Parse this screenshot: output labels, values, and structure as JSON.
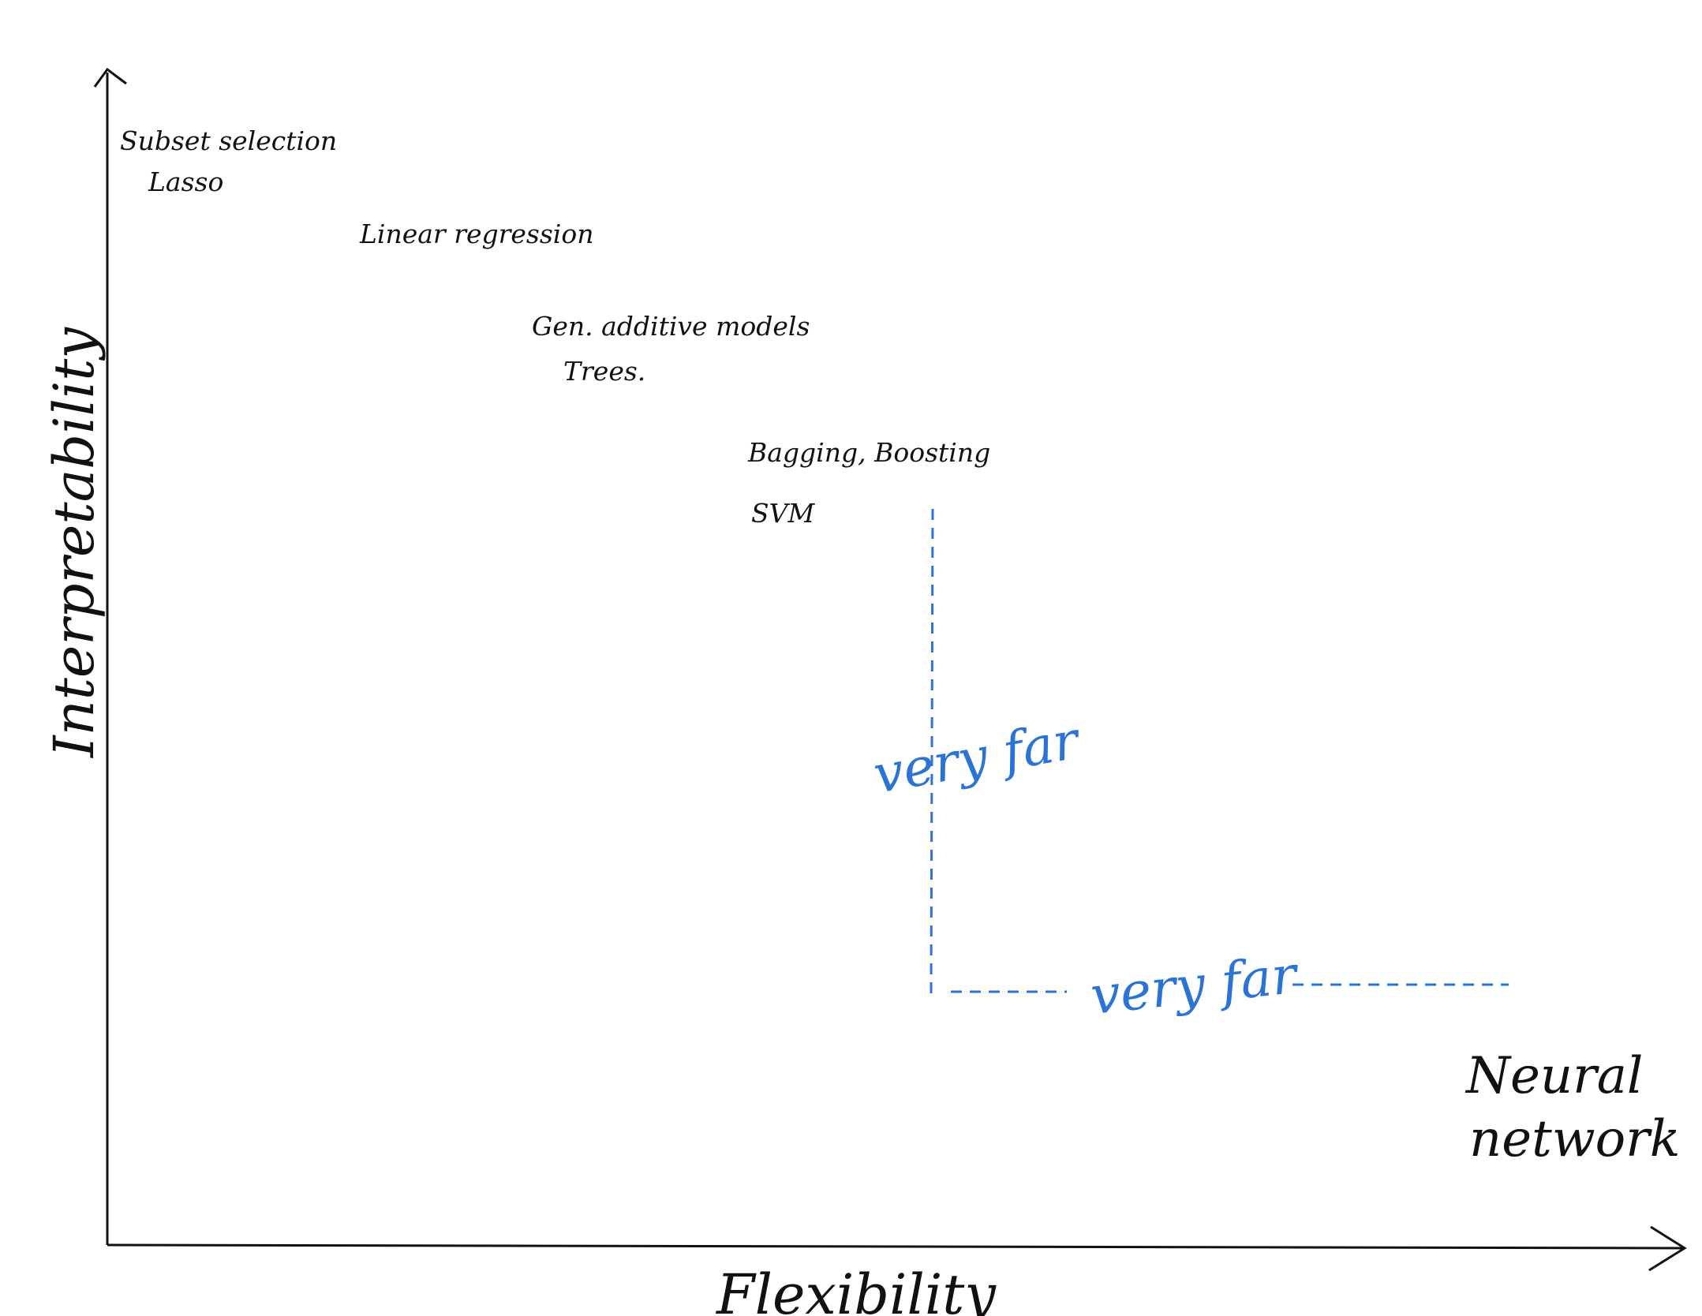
{
  "axes": {
    "y_label": "Interpretability",
    "x_label": "Flexibility"
  },
  "items": [
    {
      "id": "subset",
      "text": "Subset selection"
    },
    {
      "id": "lasso",
      "text": "Lasso"
    },
    {
      "id": "linreg",
      "text": "Linear regression"
    },
    {
      "id": "gam",
      "text": "Gen. additive models"
    },
    {
      "id": "trees",
      "text": "Trees."
    },
    {
      "id": "bagging",
      "text": "Bagging, Boosting"
    },
    {
      "id": "svm",
      "text": "SVM"
    },
    {
      "id": "nn1",
      "text": "Neural"
    },
    {
      "id": "nn2",
      "text": "network"
    }
  ],
  "annotations": {
    "vertical_gap": "very far",
    "horizontal_gap": "very far"
  },
  "colors": {
    "ink": "#111111",
    "annotation": "#2b73d6"
  }
}
